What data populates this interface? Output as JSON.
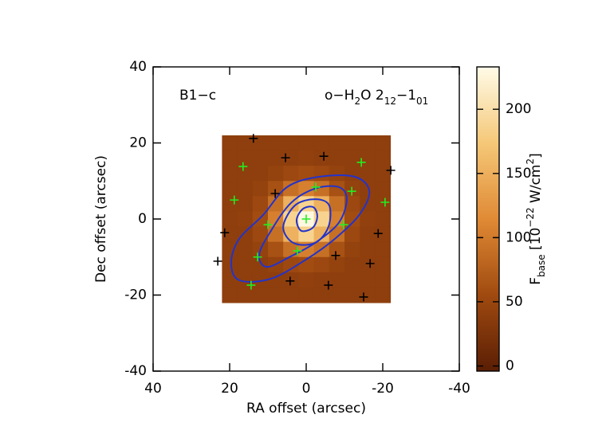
{
  "chart_data": {
    "type": "image",
    "annotation_left": "B1−c",
    "annotation_right": [
      {
        "text": "o−H"
      },
      {
        "text": "2",
        "shift": "sub"
      },
      {
        "text": "O 2"
      },
      {
        "text": "12",
        "shift": "sub"
      },
      {
        "text": "−1"
      },
      {
        "text": "01",
        "shift": "sub"
      }
    ],
    "x_label": "RA offset (arcsec)",
    "y_label": "Dec offset (arcsec)",
    "xlim": [
      40,
      -40
    ],
    "ylim": [
      -40,
      40
    ],
    "xticks": [
      40,
      20,
      0,
      -20,
      -40
    ],
    "yticks": [
      -40,
      -20,
      0,
      20,
      40
    ],
    "image": {
      "x": [
        20,
        16,
        12,
        8,
        4,
        0,
        -4,
        -8,
        -12,
        -16,
        -20
      ],
      "y": [
        20,
        16,
        12,
        8,
        4,
        0,
        -4,
        -8,
        -12,
        -16,
        -20
      ],
      "z": [
        [
          40,
          40,
          40,
          40,
          40,
          41,
          40,
          40,
          40,
          40,
          40
        ],
        [
          40,
          40,
          41,
          41,
          41,
          43,
          41,
          41,
          41,
          40,
          40
        ],
        [
          40,
          41,
          41,
          46,
          53,
          57,
          53,
          46,
          41,
          41,
          40
        ],
        [
          40,
          41,
          46,
          62,
          90,
          105,
          90,
          62,
          46,
          41,
          40
        ],
        [
          40,
          41,
          53,
          90,
          152,
          186,
          152,
          90,
          53,
          41,
          40
        ],
        [
          41,
          43,
          57,
          105,
          186,
          230,
          186,
          105,
          57,
          43,
          41
        ],
        [
          40,
          41,
          53,
          90,
          152,
          186,
          152,
          90,
          53,
          41,
          40
        ],
        [
          40,
          41,
          46,
          62,
          90,
          105,
          90,
          62,
          46,
          41,
          40
        ],
        [
          40,
          41,
          41,
          46,
          53,
          57,
          53,
          46,
          41,
          41,
          40
        ],
        [
          40,
          40,
          41,
          41,
          41,
          43,
          41,
          41,
          41,
          40,
          40
        ],
        [
          40,
          40,
          40,
          40,
          40,
          41,
          40,
          40,
          40,
          40,
          40
        ]
      ]
    },
    "colormap": [
      "#5a1e04",
      "#a04a10",
      "#e08a35",
      "#f5c878",
      "#fffbe8"
    ],
    "clim": [
      -4,
      233
    ],
    "colorbar_ticks": [
      0,
      50,
      100,
      150,
      200
    ],
    "colorbar_label": [
      {
        "text": "F"
      },
      {
        "text": "base",
        "shift": "sub"
      },
      {
        "text": " [10"
      },
      {
        "text": "−22",
        "shift": "super"
      },
      {
        "text": " W/cm"
      },
      {
        "text": "2",
        "shift": "super"
      },
      {
        "text": "]"
      }
    ],
    "contour_color": "#2233cc",
    "contours": [
      {
        "x": [
          19.6,
          17.5,
          11.3,
          5.0,
          -3.3,
          -12.7,
          -16.5,
          -13.8,
          -7.5,
          -0.2,
          9.2,
          17.5
        ],
        "y": [
          -11.5,
          -5.2,
          1.0,
          8.4,
          11.1,
          11.1,
          7.3,
          1.0,
          -5.2,
          -10.5,
          -15.7,
          -16.1
        ]
      },
      {
        "x": [
          12.3,
          9.2,
          4.0,
          -2.3,
          -8.5,
          -10.6,
          -8.5,
          -2.3,
          4.0,
          10.2
        ],
        "y": [
          -9.4,
          -3.1,
          4.2,
          8.0,
          8.4,
          5.2,
          -1.0,
          -6.3,
          -9.8,
          -12.6
        ]
      },
      {
        "x": [
          6.0,
          2.9,
          -2.3,
          -6.0,
          -5.8,
          -2.3,
          3.3
        ],
        "y": [
          -2.1,
          3.6,
          5.2,
          3.6,
          -2.1,
          -6.3,
          -6.3
        ]
      },
      {
        "x": [
          2.5,
          0.8,
          -1.9,
          -2.9,
          -1.7,
          1.3
        ],
        "y": [
          -0.2,
          2.7,
          3.1,
          0.6,
          -2.3,
          -3.1
        ]
      }
    ],
    "points": [
      {
        "color": "#000000",
        "x": [
          13.8,
          5.4,
          -4.6,
          8.1,
          21.3,
          23.1,
          4.2,
          -5.8,
          -7.7,
          -16.7,
          -18.8,
          -15.0,
          -22.1
        ],
        "y": [
          21.2,
          16.1,
          16.5,
          6.7,
          -3.6,
          -11.1,
          -16.3,
          -17.4,
          -9.6,
          -11.7,
          -3.8,
          -20.5,
          12.8
        ]
      },
      {
        "color": "#22ee22",
        "x": [
          16.5,
          18.8,
          10.0,
          12.7,
          14.4,
          2.3,
          0.0,
          -2.5,
          -9.8,
          -11.9,
          -14.4,
          -20.6
        ],
        "y": [
          13.8,
          5.0,
          -1.5,
          -10.0,
          -17.4,
          -8.4,
          0.0,
          8.4,
          -1.5,
          7.3,
          14.9,
          4.4
        ]
      }
    ]
  }
}
